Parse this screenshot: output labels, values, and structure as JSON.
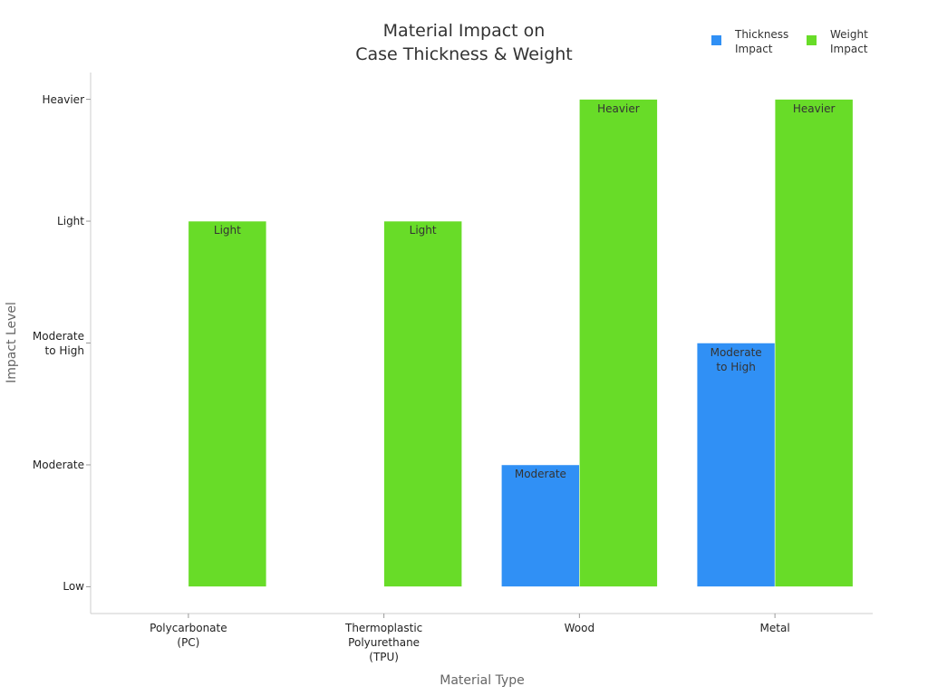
{
  "chart_data": {
    "type": "bar",
    "title": "Material Impact on\nCase Thickness & Weight",
    "x_label": "Material Type",
    "y_label": "Impact Level",
    "categories": [
      "Polycarbonate\n(PC)",
      "Thermoplastic\nPolyurethane\n(TPU)",
      "Wood",
      "Metal"
    ],
    "series": [
      {
        "name": "Thickness\nImpact",
        "color": "#3090f5",
        "values": [
          null,
          null,
          2,
          3
        ],
        "value_labels": [
          null,
          null,
          "Moderate",
          "Moderate\nto High"
        ]
      },
      {
        "name": "Weight\nImpact",
        "color": "#68dc28",
        "values": [
          4,
          4,
          5,
          5
        ],
        "value_labels": [
          "Light",
          "Light",
          "Heavier",
          "Heavier"
        ]
      }
    ],
    "ylim": [
      0.78,
      5.22
    ],
    "yticks": [
      {
        "value": 1,
        "label": "Low"
      },
      {
        "value": 2,
        "label": "Moderate"
      },
      {
        "value": 3,
        "label": "Moderate\nto High"
      },
      {
        "value": 4,
        "label": "Light"
      },
      {
        "value": 5,
        "label": "Heavier"
      }
    ],
    "legend": "top-right",
    "grid": false
  }
}
